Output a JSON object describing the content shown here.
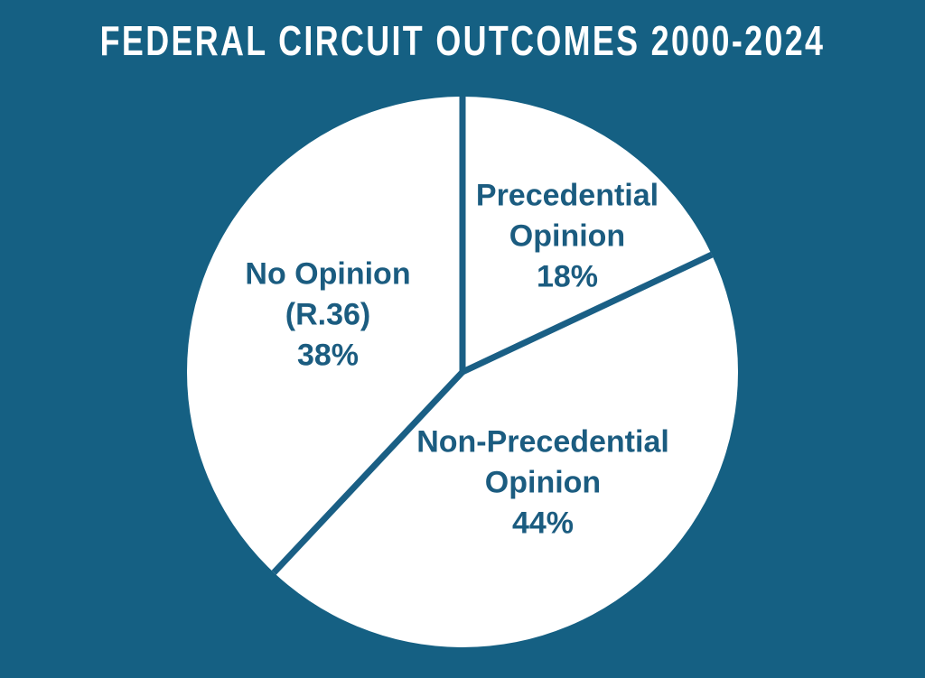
{
  "title": "FEDERAL CIRCUIT OUTCOMES 2000-2024",
  "chart_data": {
    "type": "pie",
    "title": "FEDERAL CIRCUIT OUTCOMES 2000-2024",
    "unit": "percent",
    "start_angle_deg": 0,
    "direction": "clockwise",
    "legend": "none",
    "labels_inside": true,
    "slices": [
      {
        "label": "Precedential Opinion",
        "label_lines": [
          "Precedential",
          "Opinion"
        ],
        "value": 18,
        "value_display": "18%"
      },
      {
        "label": "Non-Precedential Opinion",
        "label_lines": [
          "Non-Precedential",
          "Opinion"
        ],
        "value": 44,
        "value_display": "44%"
      },
      {
        "label": "No Opinion (R.36)",
        "label_lines": [
          "No Opinion",
          "(R.36)"
        ],
        "value": 38,
        "value_display": "38%"
      }
    ],
    "colors": {
      "background": "#156083",
      "slice_fill": "#ffffff",
      "divider": "#1a5f85",
      "label_text": "#1b5c80",
      "title_text": "#ffffff"
    }
  }
}
